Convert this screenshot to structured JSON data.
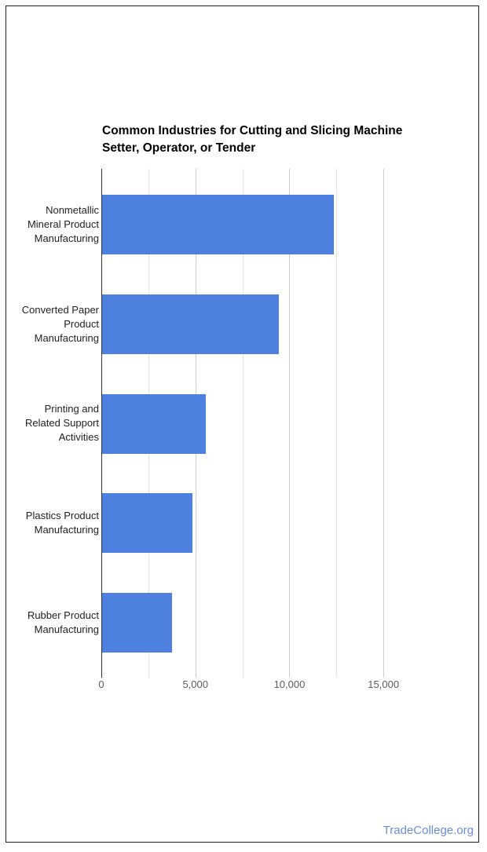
{
  "page": {
    "background": "#ffffff",
    "border_color": "#1f1f1f"
  },
  "chart_data": {
    "type": "bar",
    "orientation": "horizontal",
    "title": "Common Industries for Cutting and Slicing Machine Setter, Operator, or Tender",
    "title_lines": [
      "Common Industries for Cutting and Slicing Machine",
      "Setter, Operator, or Tender"
    ],
    "categories": [
      "Nonmetallic Mineral Product Manufacturing",
      "Converted Paper Product Manufacturing",
      "Printing and Related Support Activities",
      "Plastics Product Manufacturing",
      "Rubber Product Manufacturing"
    ],
    "category_label_lines": [
      [
        "Nonmetallic",
        "Mineral Product",
        "Manufacturing"
      ],
      [
        "Converted Paper",
        "Product",
        "Manufacturing"
      ],
      [
        "Printing and",
        "Related Support",
        "Activities"
      ],
      [
        "Plastics Product",
        "Manufacturing"
      ],
      [
        "Rubber Product",
        "Manufacturing"
      ]
    ],
    "values": [
      12300,
      9400,
      5500,
      4800,
      3700
    ],
    "xlim": [
      0,
      18750
    ],
    "x_tick_values": [
      0,
      5000,
      10000,
      15000
    ],
    "x_tick_labels": [
      "0",
      "5,000",
      "10,000",
      "15,000"
    ],
    "gridline_interval": 2500,
    "grid": true,
    "legend": "none",
    "bar_color": "#4e81df",
    "major_grid_color": "#cccccc",
    "minor_grid_color": "#e3e3e3",
    "zero_line_color": "#333333",
    "tick_text_color": "#5c5c5c",
    "label_text_color": "#1f1f1f",
    "title_color": "#000000"
  },
  "footer": {
    "link": "TradeCollege.org",
    "link_color": "#6b8ed6"
  }
}
